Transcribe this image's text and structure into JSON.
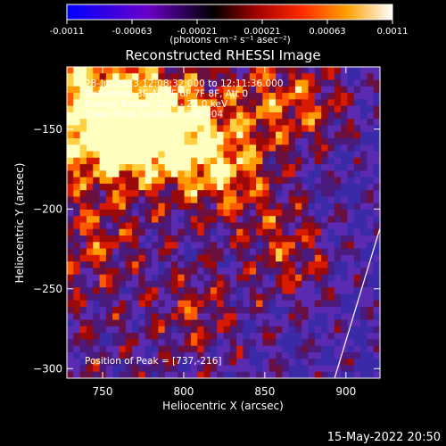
{
  "chart_data": {
    "type": "heatmap",
    "title": "Reconstructed RHESSI Image",
    "xlabel": "Heliocentric X (arcsec)",
    "ylabel": "Heliocentric Y (arcsec)",
    "x_ticks": [
      750,
      800,
      850,
      900
    ],
    "y_ticks": [
      -150,
      -200,
      -250,
      -300
    ],
    "xlim": [
      728,
      921
    ],
    "ylim": [
      -306,
      -111
    ],
    "colorbar": {
      "unit_label": "(photons cm⁻² s⁻¹ asec⁻²)",
      "ticks": [
        "-0.0011",
        "-0.00063",
        "-0.00021",
        "0.00021",
        "0.00063",
        "0.0011"
      ],
      "range": [
        -0.0011,
        0.0011
      ],
      "colors": [
        "#0000ff",
        "#5a00c8",
        "#000000",
        "#8b0000",
        "#ff2000",
        "#ff9a00",
        "#ffffff"
      ]
    },
    "annotations": [
      "28-Jul-2013 12:08:32.000 to 12:11:36.000",
      "Detectors: 3F 4F 5F 6F 7F 8F, Att 0",
      "Energy Range: 12.0 - 25.0 keV",
      "Clean     Total counts: 1.34E+04"
    ],
    "peak_label": "Position of Peak = [737,-216]",
    "peak": [
      737,
      -216
    ],
    "limb_line": [
      [
        893,
        -306
      ],
      [
        921,
        -212
      ]
    ],
    "grid": false
  },
  "footer": {
    "timestamp": "15-May-2022 20:50"
  }
}
